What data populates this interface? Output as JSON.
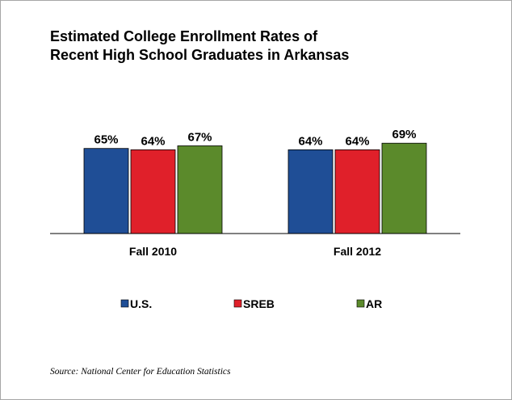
{
  "chart_data": {
    "type": "bar",
    "title_lines": [
      "Estimated College Enrollment Rates of",
      "Recent High School Graduates in Arkansas"
    ],
    "categories": [
      "Fall 2010",
      "Fall 2012"
    ],
    "series": [
      {
        "name": "U.S.",
        "values": [
          65,
          64
        ],
        "color": "#1f4e96"
      },
      {
        "name": "SREB",
        "values": [
          64,
          64
        ],
        "color": "#e0202a"
      },
      {
        "name": "AR",
        "values": [
          67,
          69
        ],
        "color": "#5b8a2b"
      }
    ],
    "value_suffix": "%",
    "ylim": [
      0,
      100
    ],
    "grid": false,
    "legend_position": "bottom"
  },
  "source_text": "Source: National Center for Education Statistics"
}
